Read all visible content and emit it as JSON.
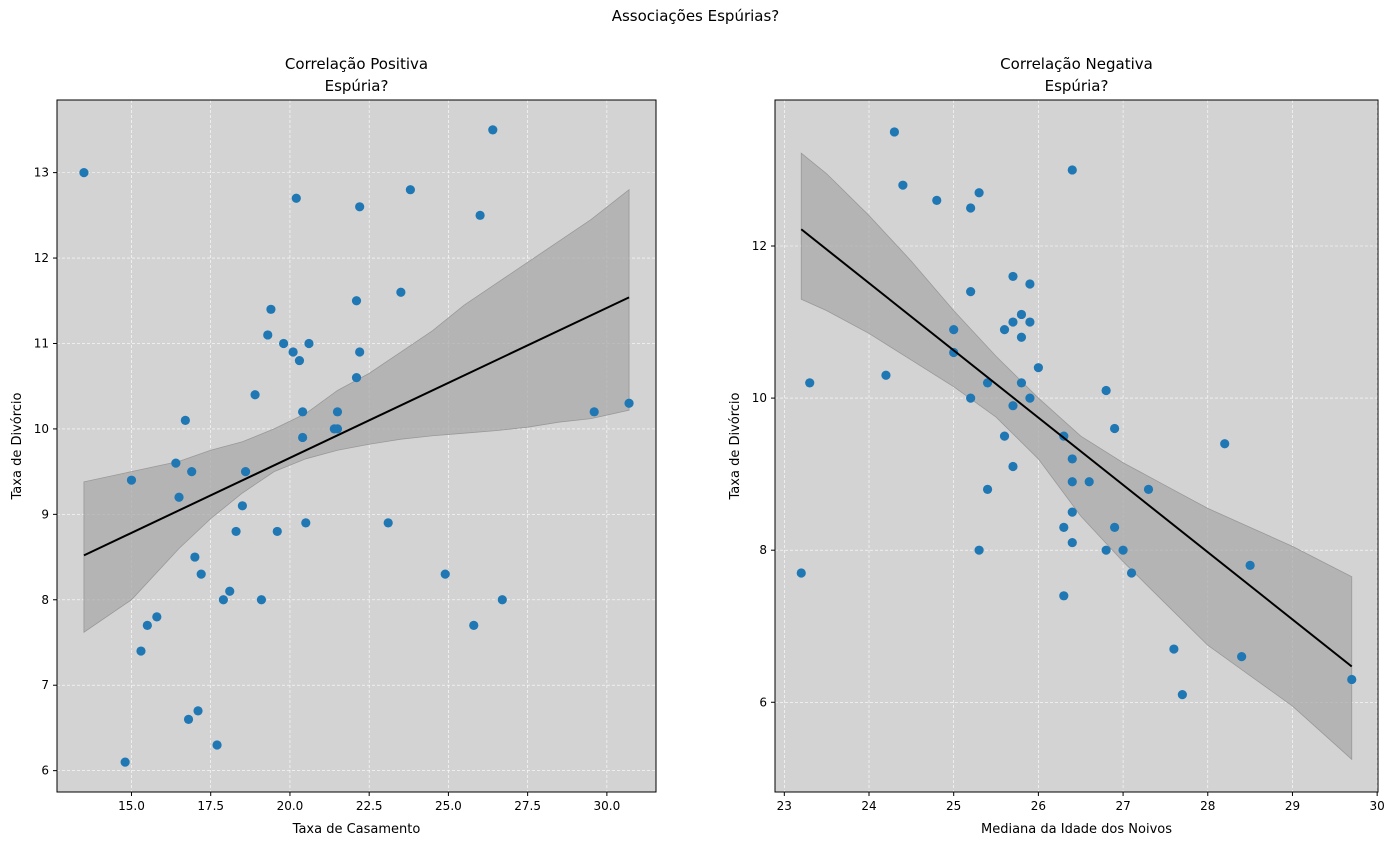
{
  "figure": {
    "suptitle": "Associações Espúrias?"
  },
  "colors": {
    "background": "#d3d3d3",
    "points": "#1f77b4",
    "line": "#000000",
    "band": "#a9a9a9",
    "grid": "#ffffff"
  },
  "chart_data": [
    {
      "type": "scatter",
      "title_line1": "Correlação Positiva",
      "title_line2": "Espúria?",
      "xlabel": "Taxa de Casamento",
      "ylabel": "Taxa de Divórcio",
      "xlim": [
        12.65,
        31.55
      ],
      "ylim": [
        5.75,
        13.85
      ],
      "xticks": [
        15.0,
        17.5,
        20.0,
        22.5,
        25.0,
        27.5,
        30.0
      ],
      "xtick_labels": [
        "15.0",
        "17.5",
        "20.0",
        "22.5",
        "25.0",
        "27.5",
        "30.0"
      ],
      "yticks": [
        6,
        7,
        8,
        9,
        10,
        11,
        12,
        13
      ],
      "ytick_labels": [
        "6",
        "7",
        "8",
        "9",
        "10",
        "11",
        "12",
        "13"
      ],
      "grid": true,
      "x": [
        13.5,
        14.8,
        15.0,
        15.3,
        15.5,
        15.8,
        16.4,
        16.5,
        16.7,
        16.8,
        16.9,
        17.0,
        17.1,
        17.2,
        17.7,
        17.9,
        18.1,
        18.3,
        18.5,
        18.6,
        18.9,
        19.1,
        19.3,
        19.4,
        19.6,
        19.8,
        20.1,
        20.2,
        20.3,
        20.4,
        20.4,
        20.5,
        20.6,
        21.4,
        21.5,
        21.5,
        22.1,
        22.1,
        22.2,
        22.2,
        23.1,
        23.5,
        23.8,
        24.9,
        25.8,
        26.0,
        26.4,
        26.7,
        29.6,
        30.7
      ],
      "y": [
        13.0,
        6.1,
        9.4,
        7.4,
        7.7,
        7.8,
        9.6,
        9.2,
        10.1,
        6.6,
        9.5,
        8.5,
        6.7,
        8.3,
        6.3,
        8.0,
        8.1,
        8.8,
        9.1,
        9.5,
        10.4,
        8.0,
        11.1,
        11.4,
        8.8,
        11.0,
        10.9,
        12.7,
        10.8,
        10.2,
        9.9,
        8.9,
        11.0,
        10.0,
        10.2,
        10.0,
        11.5,
        10.6,
        10.9,
        12.6,
        8.9,
        11.6,
        12.8,
        8.3,
        7.7,
        12.5,
        13.5,
        8.0,
        10.2,
        10.3
      ],
      "regression_line": {
        "x": [
          13.5,
          30.7
        ],
        "y": [
          8.52,
          11.54
        ]
      },
      "confidence_band": {
        "x": [
          13.5,
          15.0,
          16.5,
          17.5,
          18.5,
          19.5,
          20.5,
          21.5,
          22.5,
          23.5,
          24.5,
          25.5,
          26.5,
          27.5,
          28.5,
          29.5,
          30.7
        ],
        "lower": [
          7.62,
          8.0,
          8.6,
          8.95,
          9.25,
          9.5,
          9.65,
          9.75,
          9.82,
          9.88,
          9.92,
          9.95,
          9.98,
          10.02,
          10.08,
          10.12,
          10.22
        ],
        "upper": [
          9.38,
          9.5,
          9.62,
          9.75,
          9.85,
          10.0,
          10.18,
          10.45,
          10.65,
          10.9,
          11.15,
          11.45,
          11.7,
          11.95,
          12.2,
          12.45,
          12.8
        ]
      }
    },
    {
      "type": "scatter",
      "title_line1": "Correlação Negativa",
      "title_line2": "Espúria?",
      "xlabel": "Mediana da Idade dos Noivos",
      "ylabel": "Taxa de Divórcio",
      "xlim": [
        22.89,
        30.01
      ],
      "ylim": [
        4.82,
        13.92
      ],
      "xticks": [
        23,
        24,
        25,
        26,
        27,
        28,
        29,
        30
      ],
      "xtick_labels": [
        "23",
        "24",
        "25",
        "26",
        "27",
        "28",
        "29",
        "30"
      ],
      "yticks": [
        6,
        8,
        10,
        12
      ],
      "ytick_labels": [
        "6",
        "8",
        "10",
        "12"
      ],
      "grid": true,
      "x": [
        23.2,
        23.3,
        24.2,
        24.3,
        24.4,
        24.8,
        25.0,
        25.0,
        25.2,
        25.2,
        25.2,
        25.3,
        25.3,
        25.4,
        25.4,
        25.6,
        25.6,
        25.7,
        25.7,
        25.7,
        25.7,
        25.8,
        25.8,
        25.8,
        25.9,
        25.9,
        25.9,
        26.0,
        26.3,
        26.3,
        26.3,
        26.4,
        26.4,
        26.4,
        26.4,
        26.4,
        26.6,
        26.8,
        26.8,
        26.9,
        26.9,
        27.0,
        27.1,
        27.3,
        27.6,
        27.7,
        28.2,
        28.4,
        28.5,
        29.7
      ],
      "y": [
        7.7,
        10.2,
        10.3,
        13.5,
        12.8,
        12.6,
        10.9,
        10.6,
        12.5,
        11.4,
        10.0,
        12.7,
        8.0,
        10.2,
        8.8,
        10.9,
        9.5,
        11.6,
        11.0,
        9.9,
        9.1,
        11.1,
        10.8,
        10.2,
        11.5,
        11.0,
        10.0,
        10.4,
        9.5,
        8.3,
        7.4,
        13.0,
        9.2,
        8.9,
        8.5,
        8.1,
        8.9,
        10.1,
        8.0,
        9.6,
        8.3,
        8.0,
        7.7,
        8.8,
        6.7,
        6.1,
        9.4,
        6.6,
        7.8,
        6.3
      ],
      "regression_line": {
        "x": [
          23.2,
          29.7
        ],
        "y": [
          12.22,
          6.47
        ]
      },
      "confidence_band": {
        "x": [
          23.2,
          23.5,
          24.0,
          24.5,
          25.0,
          25.5,
          26.0,
          26.5,
          27.0,
          27.5,
          28.0,
          28.5,
          29.0,
          29.7
        ],
        "lower": [
          11.3,
          11.15,
          10.85,
          10.5,
          10.15,
          9.75,
          9.2,
          8.45,
          7.85,
          7.3,
          6.75,
          6.35,
          5.95,
          5.25
        ],
        "upper": [
          13.22,
          12.95,
          12.4,
          11.8,
          11.15,
          10.55,
          10.0,
          9.5,
          9.15,
          8.85,
          8.55,
          8.3,
          8.05,
          7.65
        ]
      }
    }
  ]
}
